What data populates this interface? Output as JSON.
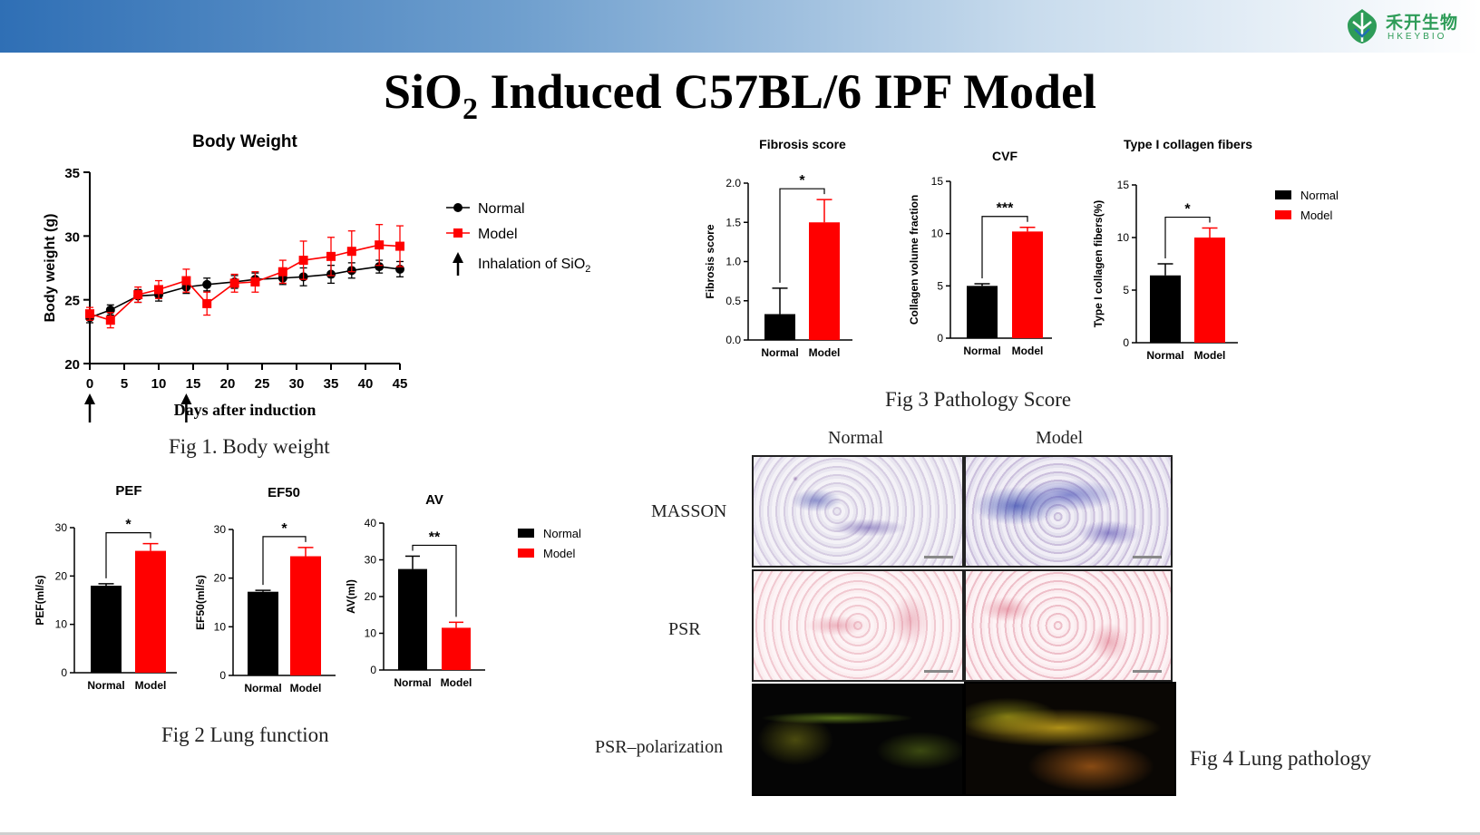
{
  "header": {
    "logo_text": "禾开生物",
    "logo_sub": "HKEYBIO"
  },
  "title": {
    "main_before": "SiO",
    "sub": "2",
    "main_after": " Induced C57BL/6 IPF Model"
  },
  "captions": {
    "fig1": "Fig 1. Body weight",
    "fig2": "Fig 2 Lung function",
    "fig3": "Fig 3 Pathology Score",
    "fig4": "Fig 4 Lung pathology"
  },
  "colors": {
    "normal": "#000000",
    "model": "#ff0000"
  },
  "pathology": {
    "col_labels": [
      "Normal",
      "Model"
    ],
    "row_labels": [
      "MASSON",
      "PSR",
      "PSR–polarization"
    ]
  },
  "chart_data": [
    {
      "id": "body_weight",
      "type": "line",
      "title": "Body Weight",
      "xlabel": "Days after induction",
      "ylabel": "Body weight (g)",
      "xlim": [
        0,
        45
      ],
      "ylim": [
        20,
        35
      ],
      "xticks": [
        0,
        5,
        10,
        15,
        20,
        25,
        30,
        35,
        40,
        45
      ],
      "yticks": [
        20,
        25,
        30,
        35
      ],
      "legend_position": "right",
      "legend": {
        "normal": "Normal",
        "model": "Model",
        "arrow_before": "Inhalation of SiO",
        "arrow_sub": "2"
      },
      "arrows_at": [
        0,
        14
      ],
      "series": [
        {
          "name": "Normal",
          "color": "#000000",
          "marker": "circle",
          "x": [
            0,
            3,
            7,
            10,
            14,
            17,
            21,
            24,
            28,
            31,
            35,
            38,
            42,
            45
          ],
          "y": [
            23.6,
            24.2,
            25.3,
            25.4,
            26.0,
            26.2,
            26.4,
            26.6,
            26.7,
            26.8,
            27.0,
            27.3,
            27.6,
            27.4
          ],
          "err": [
            0.4,
            0.4,
            0.5,
            0.5,
            0.5,
            0.5,
            0.5,
            0.5,
            0.5,
            0.7,
            0.7,
            0.6,
            0.5,
            0.6
          ]
        },
        {
          "name": "Model",
          "color": "#ff0000",
          "marker": "square",
          "x": [
            0,
            3,
            7,
            10,
            14,
            17,
            21,
            24,
            28,
            31,
            35,
            38,
            42,
            45
          ],
          "y": [
            23.9,
            23.4,
            25.4,
            25.8,
            26.5,
            24.7,
            26.3,
            26.4,
            27.2,
            28.1,
            28.4,
            28.8,
            29.3,
            29.2
          ],
          "err": [
            0.5,
            0.6,
            0.6,
            0.7,
            0.9,
            0.9,
            0.7,
            0.8,
            0.9,
            1.5,
            1.5,
            1.6,
            1.6,
            1.6
          ]
        }
      ]
    },
    {
      "id": "pef",
      "type": "bar",
      "title": "PEF",
      "ylabel": "PEF(ml/s)",
      "ylim": [
        0,
        30
      ],
      "yticks": [
        0,
        10,
        20,
        30
      ],
      "categories": [
        "Normal",
        "Model"
      ],
      "values": [
        18.0,
        25.2
      ],
      "err": [
        0.4,
        1.5
      ],
      "significance": "*"
    },
    {
      "id": "ef50",
      "type": "bar",
      "title": "EF50",
      "ylabel": "EF50(ml/s)",
      "ylim": [
        0,
        30
      ],
      "yticks": [
        0,
        10,
        20,
        30
      ],
      "categories": [
        "Normal",
        "Model"
      ],
      "values": [
        17.2,
        24.5
      ],
      "err": [
        0.3,
        1.8
      ],
      "significance": "*"
    },
    {
      "id": "av",
      "type": "bar",
      "title": "AV",
      "ylabel": "AV(ml)",
      "ylim": [
        0,
        40
      ],
      "yticks": [
        0,
        10,
        20,
        30,
        40
      ],
      "categories": [
        "Normal",
        "Model"
      ],
      "values": [
        27.5,
        11.5
      ],
      "err": [
        3.5,
        1.5
      ],
      "significance": "**"
    },
    {
      "id": "fibrosis",
      "type": "bar",
      "title": "Fibrosis score",
      "ylabel": "Fibrosis score",
      "ylim": [
        0,
        2.0
      ],
      "yticks": [
        0.0,
        0.5,
        1.0,
        1.5,
        2.0
      ],
      "ytick_labels": [
        "0.0",
        "0.5",
        "1.0",
        "1.5",
        "2.0"
      ],
      "categories": [
        "Normal",
        "Model"
      ],
      "values": [
        0.33,
        1.5
      ],
      "err": [
        0.33,
        0.29
      ],
      "significance": "*"
    },
    {
      "id": "cvf",
      "type": "bar",
      "title": "CVF",
      "ylabel": "Collagen volume fraction",
      "ylim": [
        0,
        15
      ],
      "yticks": [
        0,
        5,
        10,
        15
      ],
      "categories": [
        "Normal",
        "Model"
      ],
      "values": [
        5.0,
        10.2
      ],
      "err": [
        0.2,
        0.4
      ],
      "significance": "***"
    },
    {
      "id": "collagen",
      "type": "bar",
      "title": "Type I collagen fibers",
      "ylabel": "Type I collagen fibers(%)",
      "ylim": [
        0,
        15
      ],
      "yticks": [
        0,
        5,
        10,
        15
      ],
      "categories": [
        "Normal",
        "Model"
      ],
      "values": [
        6.4,
        10.0
      ],
      "err": [
        1.1,
        0.9
      ],
      "significance": "*"
    }
  ],
  "legends": {
    "fig2": [
      "Normal",
      "Model"
    ],
    "fig3": [
      "Normal",
      "Model"
    ]
  }
}
